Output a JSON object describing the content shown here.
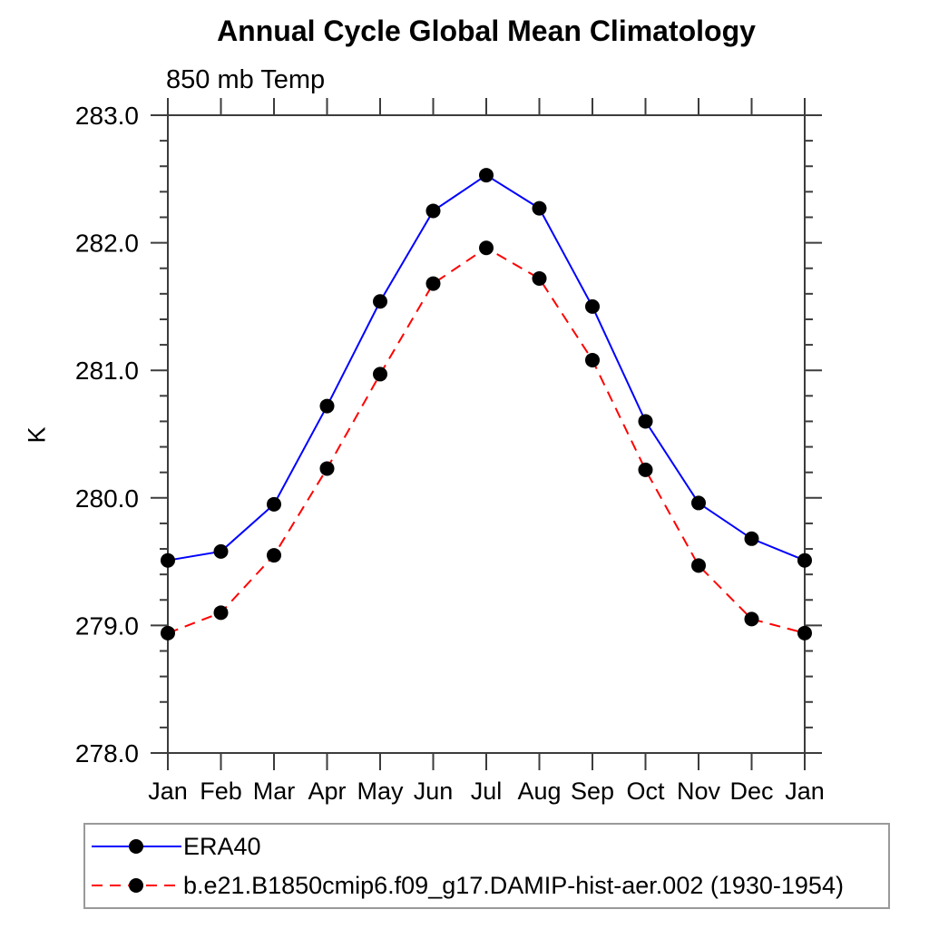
{
  "page": {
    "background": "#ffffff"
  },
  "chart_data": {
    "type": "line",
    "title": "Annual Cycle Global Mean Climatology",
    "subtitle": "850 mb Temp",
    "ylabel": "K",
    "xlabel": "",
    "x_labels": [
      "Jan",
      "Feb",
      "Mar",
      "Apr",
      "May",
      "Jun",
      "Jul",
      "Aug",
      "Sep",
      "Oct",
      "Nov",
      "Dec",
      "Jan"
    ],
    "ylim": [
      278.0,
      283.0
    ],
    "y_major_step": 1.0,
    "y_minor_step": 0.2,
    "y_tick_labels": [
      "278.0",
      "279.0",
      "280.0",
      "281.0",
      "282.0",
      "283.0"
    ],
    "grid": false,
    "axis_color": "#3c3c3c",
    "text_color": "#000000",
    "marker": {
      "shape": "circle",
      "color": "#000000",
      "radius": 8
    },
    "legend_position": "bottom-left",
    "series": [
      {
        "name": "ERA40",
        "color": "#0000ff",
        "line_style": "solid",
        "values": [
          279.51,
          279.58,
          279.95,
          280.72,
          281.54,
          282.25,
          282.53,
          282.27,
          281.5,
          280.6,
          279.96,
          279.68,
          279.51
        ]
      },
      {
        "name": "b.e21.B1850cmip6.f09_g17.DAMIP-hist-aer.002 (1930-1954)",
        "color": "#ff0000",
        "line_style": "dashed",
        "values": [
          278.94,
          279.1,
          279.55,
          280.23,
          280.97,
          281.68,
          281.96,
          281.72,
          281.08,
          280.22,
          279.47,
          279.05,
          278.94
        ]
      }
    ]
  },
  "legend": {
    "border_color": "#9a9a9a"
  }
}
